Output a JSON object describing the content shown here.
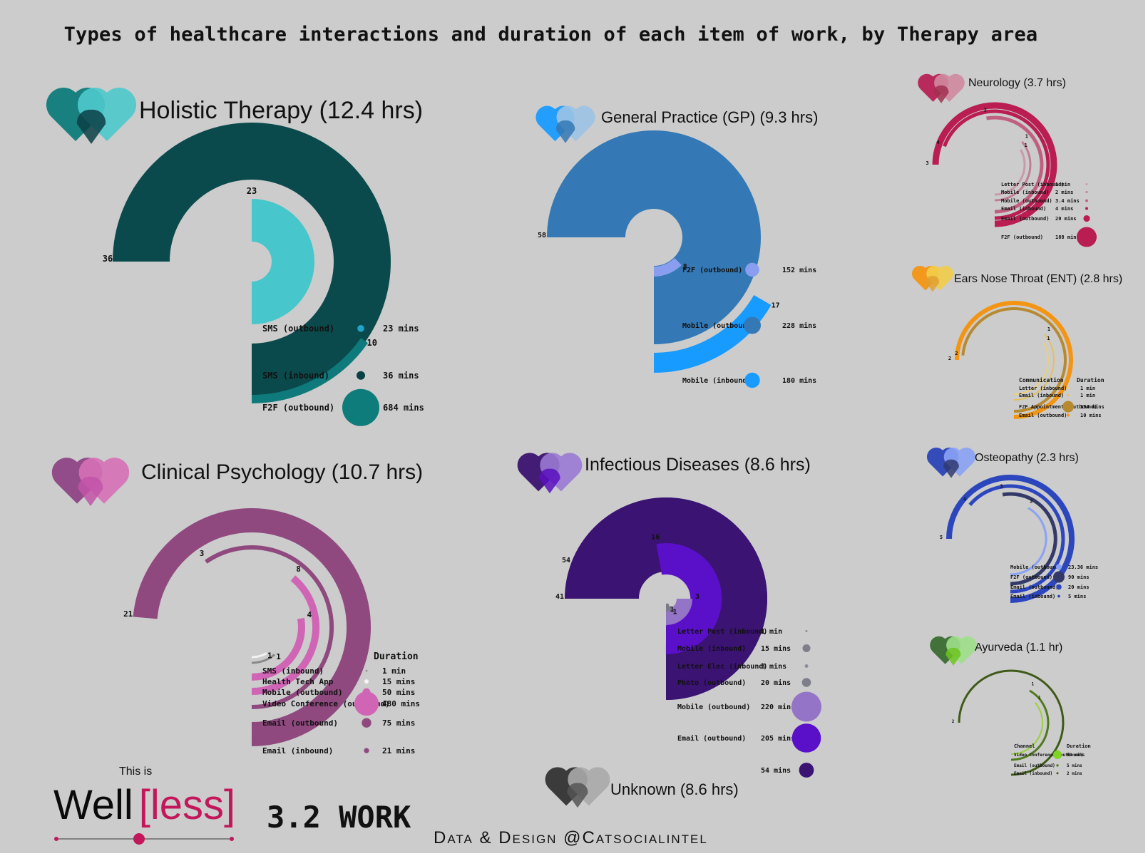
{
  "title": "Types of healthcare interactions and duration of each item of work, by Therapy area",
  "footer": {
    "this_is": "This is",
    "logo_well": "Well",
    "logo_less": "[less]",
    "section": "3.2 WORK",
    "credit": "Data & Design @Catsocialintel"
  },
  "colors": {
    "background": "#cccccc",
    "title": "#111111",
    "logo_pink": "#c2185b"
  },
  "chart_data": [
    {
      "id": "holistic",
      "type": "radial-bar",
      "title": "Holistic Therapy (12.4 hrs)",
      "heart_colors": [
        "#0e7c7b",
        "#4ec9cc",
        "#0b4045"
      ],
      "rings": [
        {
          "label": "36",
          "color": "#0b4a4c",
          "sweep": 270
        },
        {
          "label": "23",
          "color": "#47c6cb",
          "sweep": 180
        },
        {
          "label": "10",
          "color": "#0e7a7b",
          "sweep": 55
        }
      ],
      "legend_header": [],
      "legend": [
        {
          "name": "SMS (outbound)",
          "value": "23 mins",
          "color": "#1fa3c8"
        },
        {
          "name": "SMS (inbound)",
          "value": "36 mins",
          "color": "#0b4045"
        },
        {
          "name": "F2F (outbound)",
          "value": "684 mins",
          "color": "#0e7c7b"
        }
      ]
    },
    {
      "id": "gp",
      "type": "radial-bar",
      "title": "General Practice (GP) (9.3 hrs)",
      "heart_colors": [
        "#1a9bff",
        "#9cc3e6",
        "#3478b4"
      ],
      "rings": [
        {
          "label": "58",
          "color": "#3479b5",
          "sweep": 270
        },
        {
          "label": "8",
          "color": "#8a9ef0",
          "sweep": 45
        },
        {
          "label": "17",
          "color": "#189bff",
          "sweep": 60
        }
      ],
      "legend_header": [],
      "legend": [
        {
          "name": "F2F (outbound)",
          "value": "152 mins",
          "color": "#8a9ef0"
        },
        {
          "name": "Mobile (outbound)",
          "value": "228 mins",
          "color": "#3479b5"
        },
        {
          "name": "Mobile (inbound)",
          "value": "180 mins",
          "color": "#189bff"
        }
      ]
    },
    {
      "id": "clinical",
      "type": "radial-bar",
      "title": "Clinical Psychology (10.7 hrs)",
      "heart_colors": [
        "#8e4585",
        "#d670b7",
        "#c254a8"
      ],
      "rings": [
        {
          "label": "21",
          "color": "#8f497f",
          "sweep": 265
        },
        {
          "label": "3",
          "color": "#8f497f",
          "sweep": 215
        },
        {
          "label": "8",
          "color": "#d064b5",
          "sweep": 140
        },
        {
          "label": "4",
          "color": "#d064b5",
          "sweep": 100
        },
        {
          "label": "1",
          "color": "#888888",
          "sweep": 40
        },
        {
          "label": "1",
          "color": "#f2f2f2",
          "sweep": 30
        }
      ],
      "legend_header": [
        "Duration"
      ],
      "legend": [
        {
          "name": "SMS (inbound)",
          "value": "1 min",
          "color": "#999999"
        },
        {
          "name": "Health Tech App",
          "value": "15 mins",
          "color": "#f5f5f5"
        },
        {
          "name": "Mobile (outbound)",
          "value": "50 mins",
          "color": "#d064b5"
        },
        {
          "name": "Video Conference (outbound)",
          "value": "480 mins",
          "color": "#d064b5"
        },
        {
          "name": "Email (outbound)",
          "value": "75 mins",
          "color": "#8f497f"
        },
        {
          "name": "Email (inbound)",
          "value": "21 mins",
          "color": "#8f497f"
        }
      ]
    },
    {
      "id": "infectious",
      "type": "radial-bar",
      "title": "Infectious Diseases (8.6 hrs)",
      "heart_colors": [
        "#3b1370",
        "#9a7ad4",
        "#5a0fc0"
      ],
      "rings": [
        {
          "label": "41",
          "color": "#3b1372",
          "sweep": 270
        },
        {
          "label": "54",
          "color": "#3b1372",
          "sweep": 250
        },
        {
          "label": "16",
          "color": "#5a0fc8",
          "sweep": 190
        },
        {
          "label": "3",
          "color": "#9474c6",
          "sweep": 90
        },
        {
          "label": "1",
          "color": "#7a7a88",
          "sweep": 30
        },
        {
          "label": "1",
          "color": "#7a7a88",
          "sweep": 25
        }
      ],
      "legend_header": [],
      "legend": [
        {
          "name": "Letter Post (inbound)",
          "value": "1 min",
          "color": "#8c8c9a"
        },
        {
          "name": "Mobile (inbound)",
          "value": "15 mins",
          "color": "#7f7f8c"
        },
        {
          "name": "Letter Elec (inbound)",
          "value": "3 mins",
          "color": "#8c8c9a"
        },
        {
          "name": "Photo (outbound)",
          "value": "20 mins",
          "color": "#7f7f8c"
        },
        {
          "name": "Mobile (outbound)",
          "value": "220 mins",
          "color": "#9474c6"
        },
        {
          "name": "Email (outbound)",
          "value": "205 mins",
          "color": "#5a0fc8"
        },
        {
          "name": "",
          "value": "54 mins",
          "color": "#3b1372"
        }
      ]
    },
    {
      "id": "neurology",
      "type": "radial-bar",
      "title": "Neurology (3.7 hrs)",
      "heart_colors": [
        "#b72155",
        "#d08aa0",
        "#a03050"
      ],
      "rings": [
        {
          "label": "3",
          "color": "#b91d52",
          "sweep": 270
        },
        {
          "label": "4",
          "color": "#b91d52",
          "sweep": 250
        },
        {
          "label": "2",
          "color": "#c06080",
          "sweep": 190
        },
        {
          "label": "1",
          "color": "#c07e94",
          "sweep": 130
        },
        {
          "label": "1",
          "color": "#c89aab",
          "sweep": 120
        }
      ],
      "legend_header": [],
      "legend": [
        {
          "name": "Letter Post (inbound)",
          "value": "1 min",
          "color": "#c89aab"
        },
        {
          "name": "Mobile (inbound)",
          "value": "2 mins",
          "color": "#c07e94"
        },
        {
          "name": "Mobile (outbound)",
          "value": "3.4 mins",
          "color": "#c06080"
        },
        {
          "name": "Email (inbound)",
          "value": "4 mins",
          "color": "#b91d52"
        },
        {
          "name": "Email (outbound)",
          "value": "20 mins",
          "color": "#b91d52"
        },
        {
          "name": "F2F (outbound)",
          "value": "188 mins",
          "color": "#b91d52"
        }
      ]
    },
    {
      "id": "ent",
      "type": "radial-bar",
      "title": "Ears Nose Throat (ENT) (2.8 hrs)",
      "heart_colors": [
        "#f39512",
        "#f2cd4a",
        "#e0a030"
      ],
      "rings": [
        {
          "label": "2",
          "color": "#f39512",
          "sweep": 270
        },
        {
          "label": "2",
          "color": "#b88a30",
          "sweep": 265
        },
        {
          "label": "1",
          "color": "#e2c061",
          "sweep": 130
        },
        {
          "label": "1",
          "color": "#ebd07a",
          "sweep": 120
        }
      ],
      "legend_header": [
        "Communication",
        "Duration"
      ],
      "legend": [
        {
          "name": "Letter (inbound)",
          "value": "1 min",
          "color": "#ebd07a"
        },
        {
          "name": "Email (inbound)",
          "value": "1 min",
          "color": "#e2c061"
        },
        {
          "name": "F2F Appointment (outbound)",
          "value": "154 mins",
          "color": "#b88a30"
        },
        {
          "name": "Email (outbound)",
          "value": "10 mins",
          "color": "#f39512"
        }
      ]
    },
    {
      "id": "osteopathy",
      "type": "radial-bar",
      "title": "Osteopathy (2.3 hrs)",
      "heart_colors": [
        "#2b43b8",
        "#8aa2f5",
        "#303a70"
      ],
      "rings": [
        {
          "label": "5",
          "color": "#2c46be",
          "sweep": 270
        },
        {
          "label": "4",
          "color": "#2c46be",
          "sweep": 230
        },
        {
          "label": "3",
          "color": "#333a68",
          "sweep": 190
        },
        {
          "label": "2",
          "color": "#8aa2f5",
          "sweep": 150
        }
      ],
      "legend_header": [],
      "legend": [
        {
          "name": "Mobile (outbound)",
          "value": "23.36 mins",
          "color": "#8aa2f5"
        },
        {
          "name": "F2F (outbound)",
          "value": "90 mins",
          "color": "#333a68"
        },
        {
          "name": "Email (outbound)",
          "value": "20 mins",
          "color": "#2c46be"
        },
        {
          "name": "Email (inbound)",
          "value": "5 mins",
          "color": "#2c46be"
        }
      ]
    },
    {
      "id": "ayurveda",
      "type": "radial-bar",
      "title": "Ayurveda (1.1 hr)",
      "heart_colors": [
        "#3a6b30",
        "#9fe08a",
        "#6cc520"
      ],
      "rings": [
        {
          "label": "2",
          "color": "#3f5a18",
          "sweep": 270
        },
        {
          "label": "1",
          "color": "#4f7a1c",
          "sweep": 150
        },
        {
          "label": "1",
          "color": "#9ad13c",
          "sweep": 130
        }
      ],
      "legend_header": [
        "Channel",
        "Duration"
      ],
      "legend": [
        {
          "name": "Video Conference (outbound)",
          "value": "60 mins",
          "color": "#7fd321"
        },
        {
          "name": "Email (outbound)",
          "value": "5 mins",
          "color": "#4f7a1c"
        },
        {
          "name": "Email (inbound)",
          "value": "2 mins",
          "color": "#3f5a18"
        }
      ]
    },
    {
      "id": "unknown",
      "type": "radial-bar",
      "title": "Unknown (8.6 hrs)",
      "heart_colors": [
        "#333333",
        "#aaaaaa",
        "#555555"
      ],
      "rings": [],
      "legend_header": [],
      "legend": []
    }
  ]
}
